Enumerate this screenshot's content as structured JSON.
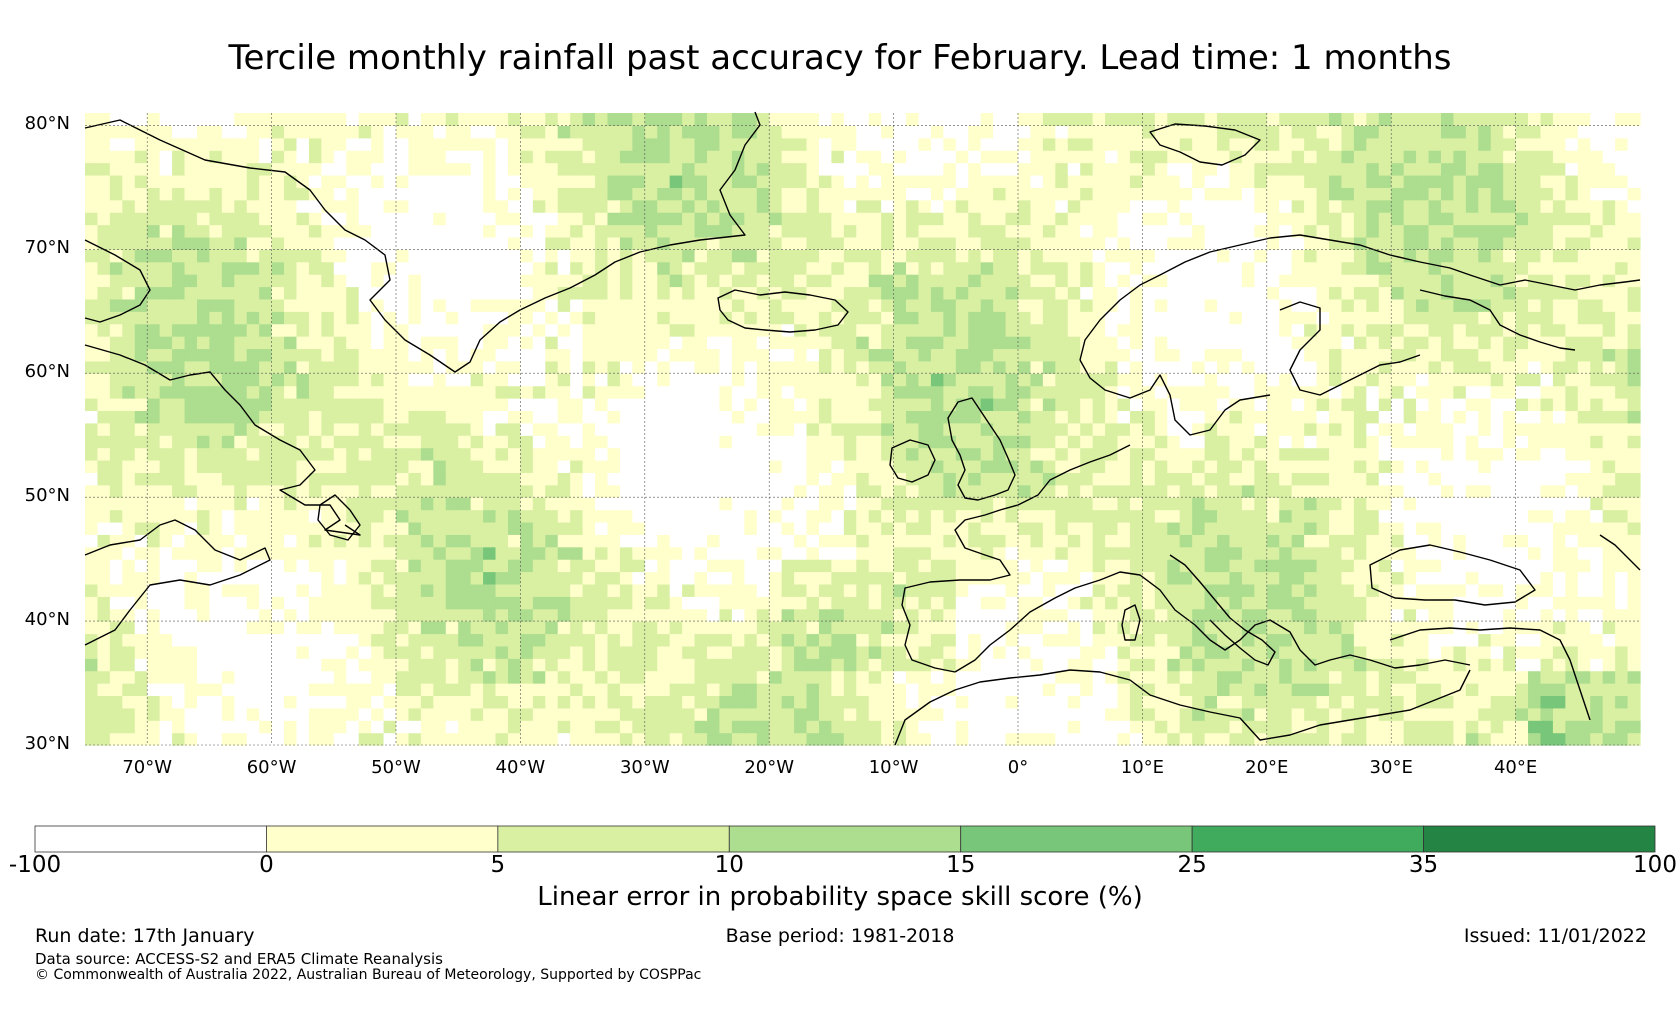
{
  "title": "Tercile monthly rainfall past accuracy for February. Lead time: 1 months",
  "map": {
    "lon_range": [
      -75,
      50
    ],
    "lat_range": [
      30,
      81
    ],
    "lat_ticks": [
      {
        "value": 80,
        "label": "80°N"
      },
      {
        "value": 70,
        "label": "70°N"
      },
      {
        "value": 60,
        "label": "60°N"
      },
      {
        "value": 50,
        "label": "50°N"
      },
      {
        "value": 40,
        "label": "40°N"
      },
      {
        "value": 30,
        "label": "30°N"
      }
    ],
    "lon_ticks": [
      {
        "value": -70,
        "label": "70°W"
      },
      {
        "value": -60,
        "label": "60°W"
      },
      {
        "value": -50,
        "label": "50°W"
      },
      {
        "value": -40,
        "label": "40°W"
      },
      {
        "value": -30,
        "label": "30°W"
      },
      {
        "value": -20,
        "label": "20°W"
      },
      {
        "value": -10,
        "label": "10°W"
      },
      {
        "value": 0,
        "label": "0°"
      },
      {
        "value": 10,
        "label": "10°E"
      },
      {
        "value": 20,
        "label": "20°E"
      },
      {
        "value": 30,
        "label": "30°E"
      },
      {
        "value": 40,
        "label": "40°E"
      }
    ],
    "gridlines": true,
    "cell_size_deg": 1
  },
  "colorbar": {
    "title": "Linear error in probability space skill score (%)",
    "bounds": [
      "-100",
      "0",
      "5",
      "10",
      "15",
      "25",
      "35",
      "100"
    ],
    "colors": [
      "#ffffff",
      "#ffffcc",
      "#d9f0a3",
      "#addd8e",
      "#78c679",
      "#41ab5d",
      "#238443"
    ]
  },
  "footer": {
    "run_date": "Run date: 17th January",
    "base_period": "Base period: 1981-2018",
    "issued": "Issued: 11/01/2022",
    "data_source": "Data source: ACCESS-S2 and ERA5 Climate Reanalysis",
    "copyright": "© Commonwealth of Australia 2022, Australian Bureau of Meteorology, Supported by COSPPac"
  }
}
